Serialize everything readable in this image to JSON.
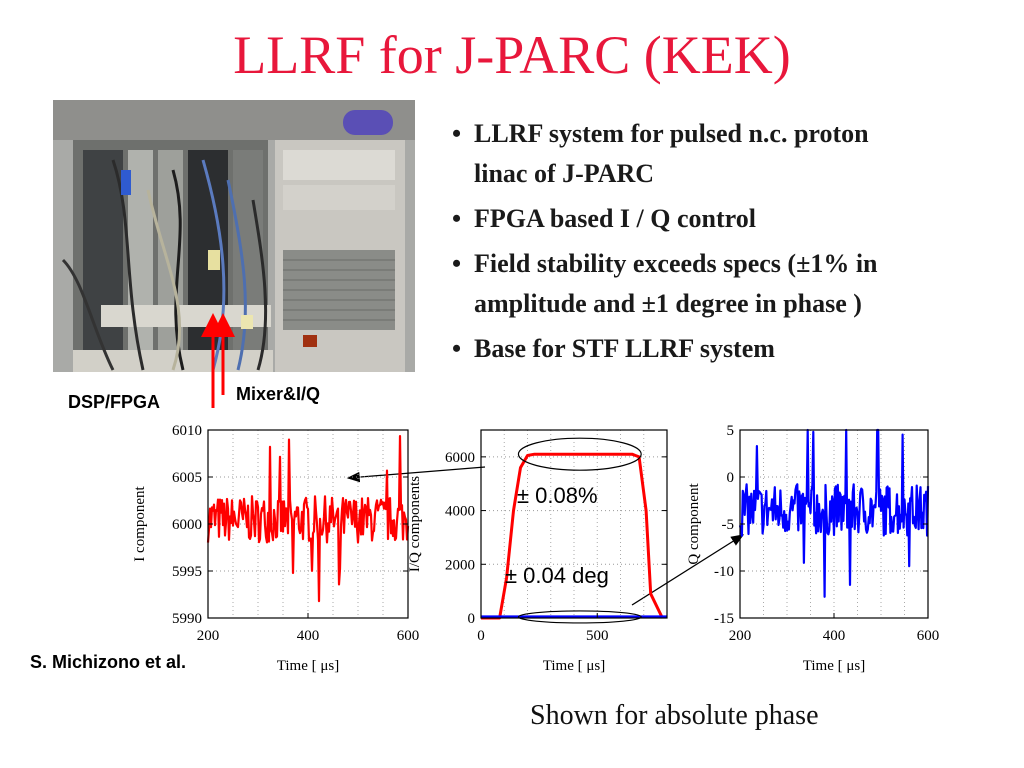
{
  "title": "LLRF for J-PARC (KEK)",
  "bullets": [
    "LLRF system for pulsed n.c. proton linac of J-PARC",
    "FPGA based I / Q control",
    "Field stability exceeds specs (±1% in amplitude and ±1 degree in phase )",
    "Base for STF LLRF system"
  ],
  "labels": {
    "dsp_fpga": "DSP/FPGA",
    "mixer_iq": "Mixer&I/Q",
    "author": "S. Michizono et al.",
    "caption": "Shown for absolute phase"
  },
  "colors": {
    "title": "#e8173b",
    "i_trace": "#ff0000",
    "q_trace": "#0000ff"
  },
  "chart_data": [
    {
      "type": "line",
      "ylabel": "I component",
      "xlabel": "Time [ μs]",
      "xlim": [
        200,
        600
      ],
      "ylim": [
        5990,
        6010
      ],
      "xticks": [
        200,
        400,
        600
      ],
      "yticks": [
        5990,
        5995,
        6000,
        6005,
        6010
      ],
      "grid": true,
      "series": [
        {
          "color": "#ff0000",
          "x_range": [
            200,
            600
          ],
          "mean": 6000.5,
          "noise_pp": 9,
          "points": 200
        }
      ]
    },
    {
      "type": "line",
      "ylabel": "I/Q components",
      "xlabel": "Time [ μs]",
      "xlim": [
        0,
        800
      ],
      "ylim": [
        0,
        7000
      ],
      "xticks": [
        0,
        500
      ],
      "yticks": [
        0,
        2000,
        4000,
        6000
      ],
      "grid": true,
      "annotations": [
        "± 0.08%",
        "± 0.04 deg"
      ],
      "series": [
        {
          "color": "#ff0000",
          "x": [
            0,
            80,
            110,
            140,
            170,
            200,
            230,
            650,
            680,
            710,
            730,
            780
          ],
          "y": [
            0,
            0,
            1500,
            4000,
            5600,
            6050,
            6100,
            6100,
            6000,
            4000,
            900,
            0
          ]
        },
        {
          "color": "#0000ff",
          "x": [
            0,
            800
          ],
          "y": [
            40,
            40
          ]
        }
      ]
    },
    {
      "type": "line",
      "ylabel": "Q component",
      "xlabel": "Time [ μs]",
      "xlim": [
        200,
        600
      ],
      "ylim": [
        -15,
        5
      ],
      "xticks": [
        200,
        400,
        600
      ],
      "yticks": [
        -15,
        -10,
        -5,
        0,
        5
      ],
      "grid": true,
      "series": [
        {
          "color": "#0000ff",
          "x_range": [
            200,
            600
          ],
          "mean": -3.5,
          "noise_pp": 10,
          "points": 200
        }
      ]
    }
  ]
}
